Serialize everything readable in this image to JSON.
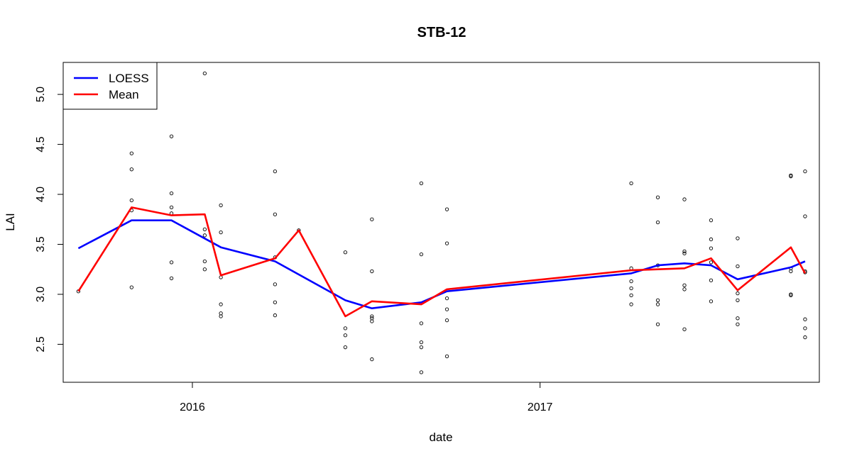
{
  "chart_data": {
    "type": "scatter",
    "title": "STB-12",
    "xlabel": "date",
    "ylabel": "LAI",
    "xlim": [
      "2015-08-18",
      "2017-10-22"
    ],
    "ylim": [
      2.12,
      5.32
    ],
    "x_ticks": [
      "2016-01-01",
      "2017-01-01"
    ],
    "x_tick_labels": [
      "2016",
      "2017"
    ],
    "y_ticks": [
      2.5,
      3.0,
      3.5,
      4.0,
      4.5,
      5.0
    ],
    "y_tick_labels": [
      "2.5",
      "3.0",
      "3.5",
      "4.0",
      "4.5",
      "5.0"
    ],
    "grid": false,
    "legend": {
      "position": "top-left",
      "entries": [
        "LOESS",
        "Mean"
      ]
    },
    "colors": {
      "loess": "#0000ff",
      "mean": "#ff0000",
      "points": "#000000"
    },
    "points": [
      {
        "x": "2015-09-03",
        "y": 3.03
      },
      {
        "x": "2015-10-29",
        "y": 4.41
      },
      {
        "x": "2015-10-29",
        "y": 4.25
      },
      {
        "x": "2015-10-29",
        "y": 3.94
      },
      {
        "x": "2015-10-29",
        "y": 3.84
      },
      {
        "x": "2015-10-29",
        "y": 3.07
      },
      {
        "x": "2015-12-10",
        "y": 4.58
      },
      {
        "x": "2015-12-10",
        "y": 4.01
      },
      {
        "x": "2015-12-10",
        "y": 3.87
      },
      {
        "x": "2015-12-10",
        "y": 3.81
      },
      {
        "x": "2015-12-10",
        "y": 3.32
      },
      {
        "x": "2015-12-10",
        "y": 3.16
      },
      {
        "x": "2016-01-14",
        "y": 5.21
      },
      {
        "x": "2016-01-14",
        "y": 3.65
      },
      {
        "x": "2016-01-14",
        "y": 3.59
      },
      {
        "x": "2016-01-14",
        "y": 3.33
      },
      {
        "x": "2016-01-14",
        "y": 3.25
      },
      {
        "x": "2016-01-31",
        "y": 3.89
      },
      {
        "x": "2016-01-31",
        "y": 3.62
      },
      {
        "x": "2016-01-31",
        "y": 3.17
      },
      {
        "x": "2016-01-31",
        "y": 2.9
      },
      {
        "x": "2016-01-31",
        "y": 2.81
      },
      {
        "x": "2016-01-31",
        "y": 2.78
      },
      {
        "x": "2016-03-28",
        "y": 4.23
      },
      {
        "x": "2016-03-28",
        "y": 3.8
      },
      {
        "x": "2016-03-28",
        "y": 3.37
      },
      {
        "x": "2016-03-28",
        "y": 3.1
      },
      {
        "x": "2016-03-28",
        "y": 2.92
      },
      {
        "x": "2016-03-28",
        "y": 2.79
      },
      {
        "x": "2016-04-22",
        "y": 3.64
      },
      {
        "x": "2016-06-10",
        "y": 3.42
      },
      {
        "x": "2016-06-10",
        "y": 2.66
      },
      {
        "x": "2016-06-10",
        "y": 2.59
      },
      {
        "x": "2016-06-10",
        "y": 2.47
      },
      {
        "x": "2016-07-08",
        "y": 3.75
      },
      {
        "x": "2016-07-08",
        "y": 3.23
      },
      {
        "x": "2016-07-08",
        "y": 2.78
      },
      {
        "x": "2016-07-08",
        "y": 2.76
      },
      {
        "x": "2016-07-08",
        "y": 2.73
      },
      {
        "x": "2016-07-08",
        "y": 2.35
      },
      {
        "x": "2016-08-29",
        "y": 4.11
      },
      {
        "x": "2016-08-29",
        "y": 3.4
      },
      {
        "x": "2016-08-29",
        "y": 2.71
      },
      {
        "x": "2016-08-29",
        "y": 2.52
      },
      {
        "x": "2016-08-29",
        "y": 2.47
      },
      {
        "x": "2016-08-29",
        "y": 2.22
      },
      {
        "x": "2016-09-25",
        "y": 3.85
      },
      {
        "x": "2016-09-25",
        "y": 3.51
      },
      {
        "x": "2016-09-25",
        "y": 2.96
      },
      {
        "x": "2016-09-25",
        "y": 2.85
      },
      {
        "x": "2016-09-25",
        "y": 2.74
      },
      {
        "x": "2016-09-25",
        "y": 2.38
      },
      {
        "x": "2017-04-07",
        "y": 4.11
      },
      {
        "x": "2017-04-07",
        "y": 3.26
      },
      {
        "x": "2017-04-07",
        "y": 3.13
      },
      {
        "x": "2017-04-07",
        "y": 3.06
      },
      {
        "x": "2017-04-07",
        "y": 2.99
      },
      {
        "x": "2017-04-07",
        "y": 2.9
      },
      {
        "x": "2017-05-05",
        "y": 3.97
      },
      {
        "x": "2017-05-05",
        "y": 3.72
      },
      {
        "x": "2017-05-05",
        "y": 3.29
      },
      {
        "x": "2017-05-05",
        "y": 2.94
      },
      {
        "x": "2017-05-05",
        "y": 2.9
      },
      {
        "x": "2017-05-05",
        "y": 2.7
      },
      {
        "x": "2017-06-02",
        "y": 3.95
      },
      {
        "x": "2017-06-02",
        "y": 3.43
      },
      {
        "x": "2017-06-02",
        "y": 3.41
      },
      {
        "x": "2017-06-02",
        "y": 3.09
      },
      {
        "x": "2017-06-02",
        "y": 3.05
      },
      {
        "x": "2017-06-02",
        "y": 2.65
      },
      {
        "x": "2017-06-30",
        "y": 3.74
      },
      {
        "x": "2017-06-30",
        "y": 3.55
      },
      {
        "x": "2017-06-30",
        "y": 3.46
      },
      {
        "x": "2017-06-30",
        "y": 3.32
      },
      {
        "x": "2017-06-30",
        "y": 3.14
      },
      {
        "x": "2017-06-30",
        "y": 2.93
      },
      {
        "x": "2017-07-28",
        "y": 3.56
      },
      {
        "x": "2017-07-28",
        "y": 3.28
      },
      {
        "x": "2017-07-28",
        "y": 3.01
      },
      {
        "x": "2017-07-28",
        "y": 2.94
      },
      {
        "x": "2017-07-28",
        "y": 2.76
      },
      {
        "x": "2017-07-28",
        "y": 2.7
      },
      {
        "x": "2017-09-22",
        "y": 4.19
      },
      {
        "x": "2017-09-22",
        "y": 4.18
      },
      {
        "x": "2017-09-22",
        "y": 3.26
      },
      {
        "x": "2017-09-22",
        "y": 3.23
      },
      {
        "x": "2017-09-22",
        "y": 3.0
      },
      {
        "x": "2017-09-22",
        "y": 2.99
      },
      {
        "x": "2017-10-07",
        "y": 4.23
      },
      {
        "x": "2017-10-07",
        "y": 3.78
      },
      {
        "x": "2017-10-07",
        "y": 3.23
      },
      {
        "x": "2017-10-07",
        "y": 3.22
      },
      {
        "x": "2017-10-07",
        "y": 2.75
      },
      {
        "x": "2017-10-07",
        "y": 2.66
      },
      {
        "x": "2017-10-07",
        "y": 2.57
      }
    ],
    "series": [
      {
        "name": "LOESS",
        "x": [
          "2015-09-03",
          "2015-10-29",
          "2015-12-10",
          "2016-01-31",
          "2016-03-28",
          "2016-06-10",
          "2016-07-08",
          "2016-08-29",
          "2016-09-25",
          "2017-04-07",
          "2017-05-05",
          "2017-06-02",
          "2017-06-30",
          "2017-07-28",
          "2017-09-22",
          "2017-10-07"
        ],
        "y": [
          3.46,
          3.74,
          3.74,
          3.47,
          3.33,
          2.94,
          2.86,
          2.92,
          3.03,
          3.21,
          3.29,
          3.31,
          3.29,
          3.15,
          3.27,
          3.33
        ]
      },
      {
        "name": "Mean",
        "x": [
          "2015-09-03",
          "2015-10-29",
          "2015-12-10",
          "2016-01-14",
          "2016-01-31",
          "2016-03-28",
          "2016-04-22",
          "2016-06-10",
          "2016-07-08",
          "2016-08-29",
          "2016-09-25",
          "2017-04-07",
          "2017-06-02",
          "2017-06-30",
          "2017-07-28",
          "2017-09-22",
          "2017-10-07"
        ],
        "y": [
          3.03,
          3.87,
          3.79,
          3.8,
          3.19,
          3.36,
          3.64,
          2.78,
          2.93,
          2.9,
          3.05,
          3.24,
          3.26,
          3.36,
          3.04,
          3.47,
          3.21
        ]
      }
    ]
  }
}
